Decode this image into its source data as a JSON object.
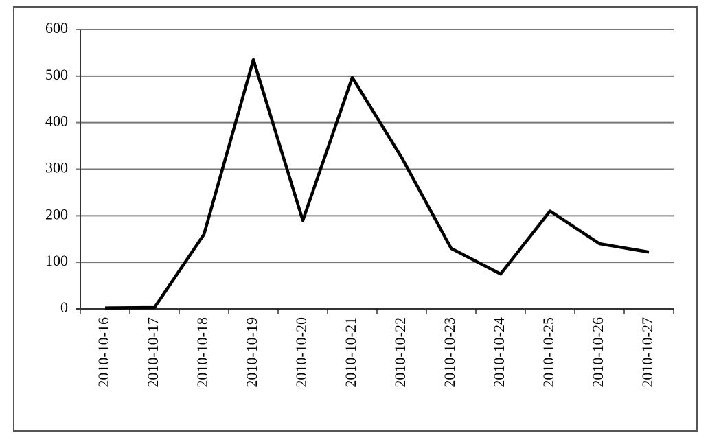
{
  "chart_data": {
    "type": "line",
    "categories": [
      "2010-10-16",
      "2010-10-17",
      "2010-10-18",
      "2010-10-19",
      "2010-10-20",
      "2010-10-21",
      "2010-10-22",
      "2010-10-23",
      "2010-10-24",
      "2010-10-25",
      "2010-10-26",
      "2010-10-27"
    ],
    "values": [
      2,
      3,
      160,
      535,
      190,
      497,
      325,
      130,
      75,
      210,
      140,
      122
    ],
    "color": "#000000",
    "ylim": [
      0,
      600
    ],
    "yticks": [
      0,
      100,
      200,
      300,
      400,
      500,
      600
    ],
    "grid": true
  }
}
